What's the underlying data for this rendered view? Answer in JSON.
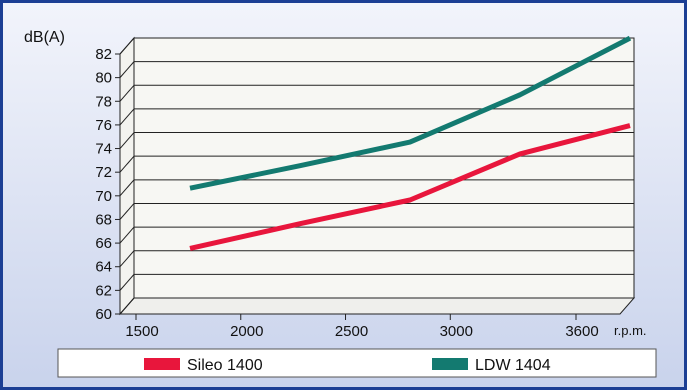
{
  "chart_data": {
    "type": "line",
    "ylabel": "dB(A)",
    "xlabel": "r.p.m.",
    "x": [
      1600,
      2100,
      2600,
      3100,
      3600
    ],
    "x_ticks": [
      1500,
      2000,
      2500,
      3000,
      3600
    ],
    "x_tick_labels": [
      "1500",
      "2000",
      "2500",
      "3000",
      "3600"
    ],
    "ylim": [
      60,
      82
    ],
    "y_ticks": [
      60,
      62,
      64,
      66,
      68,
      70,
      72,
      74,
      76,
      78,
      80,
      82
    ],
    "grid": true,
    "legend_position": "bottom",
    "series": [
      {
        "name": "Sileo 1400",
        "color": "#e8163c",
        "values": [
          64.7,
          66.8,
          68.8,
          72.7,
          75.1
        ]
      },
      {
        "name": "LDW 1404",
        "color": "#137a70",
        "values": [
          69.8,
          71.7,
          73.7,
          77.7,
          82.5
        ]
      }
    ]
  }
}
